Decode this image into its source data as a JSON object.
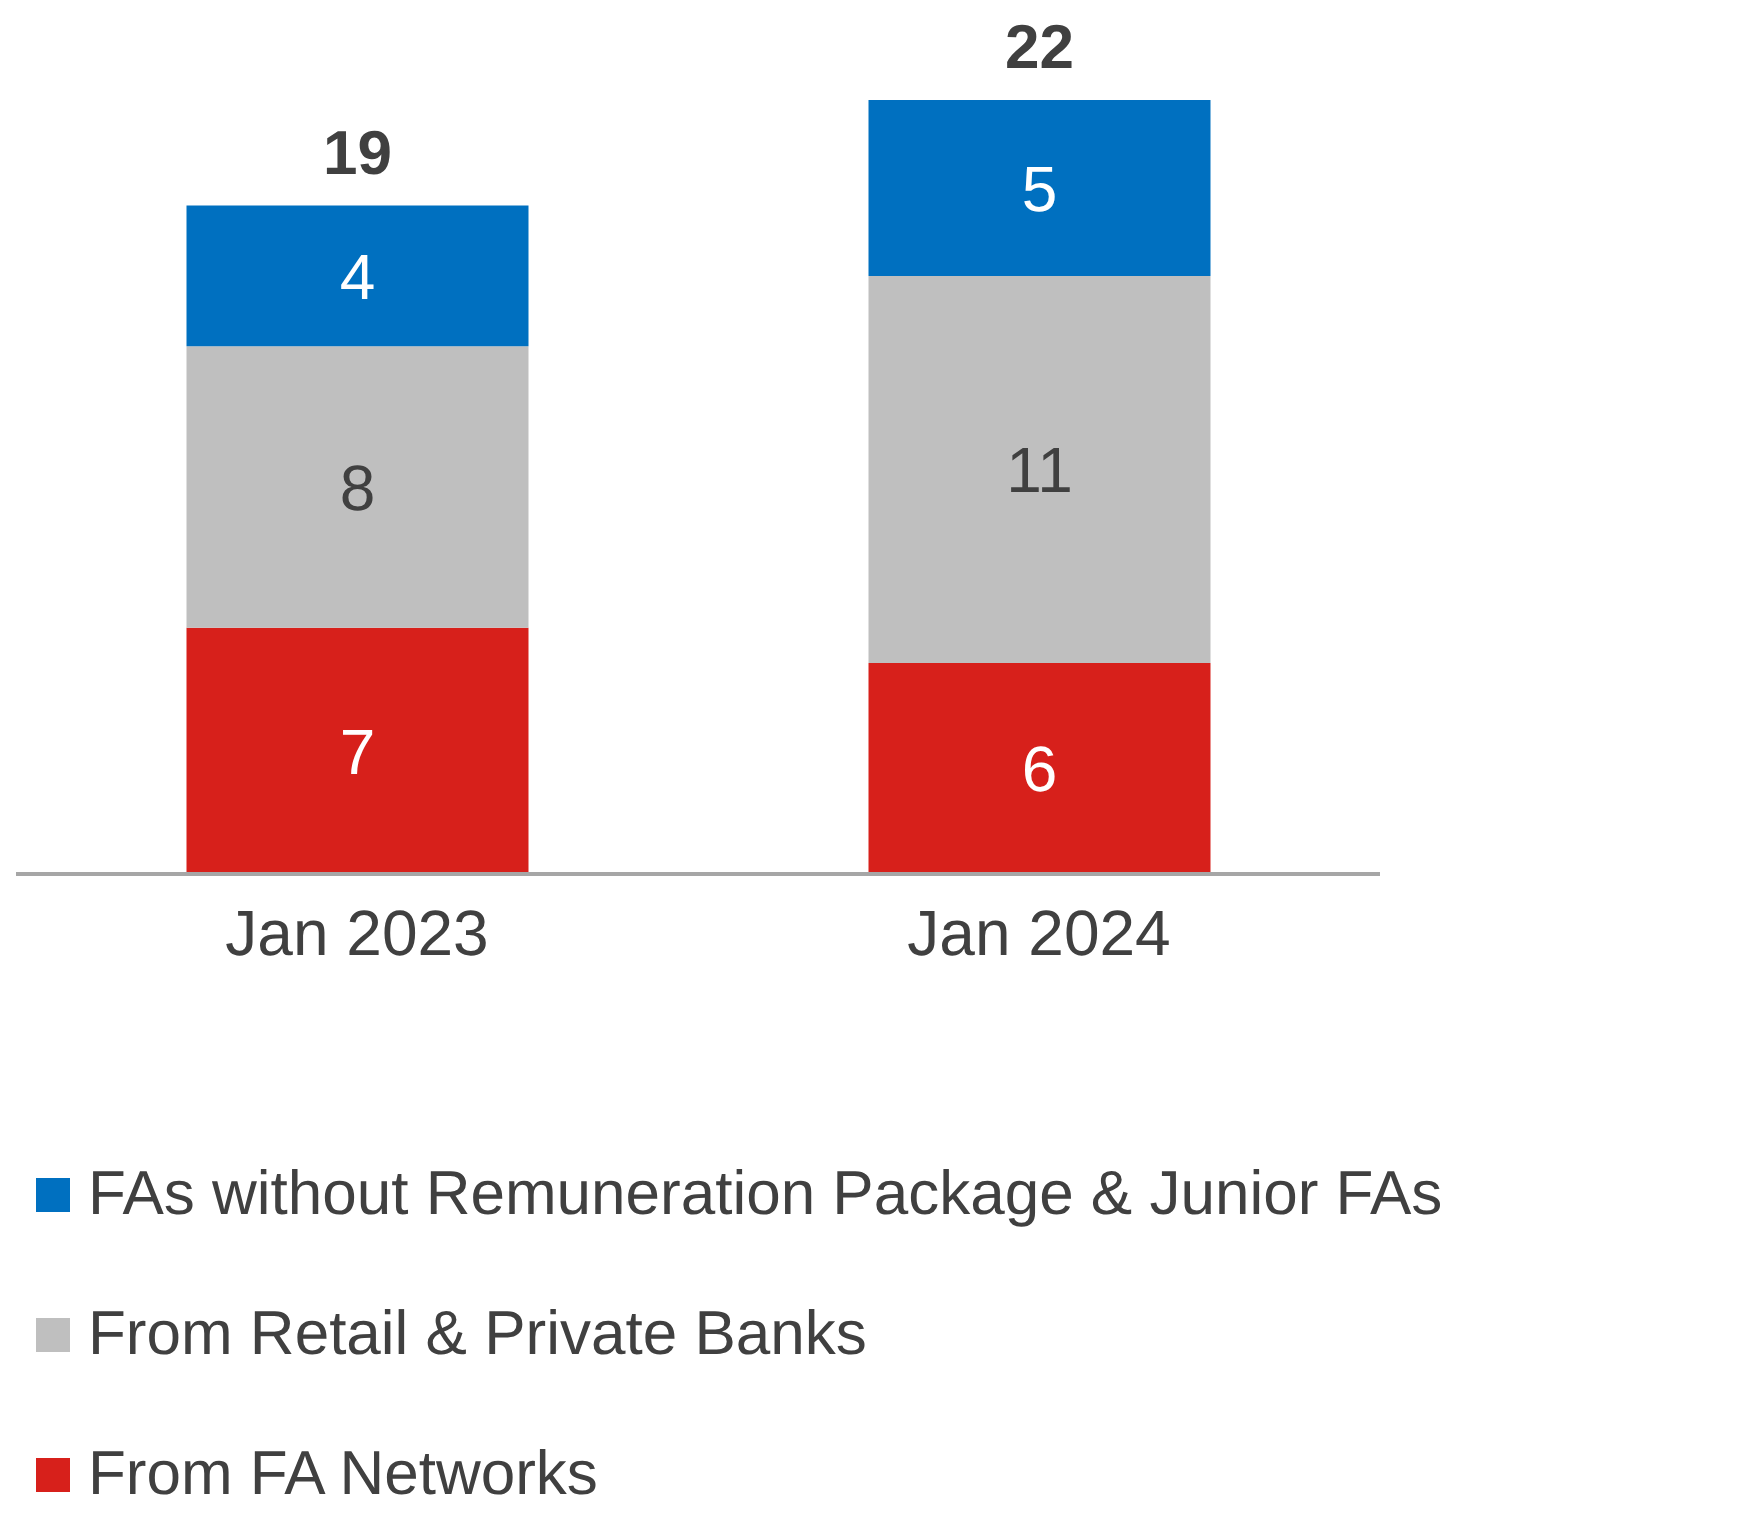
{
  "chart_data": {
    "type": "bar",
    "stacked": true,
    "categories": [
      "Jan 2023",
      "Jan 2024"
    ],
    "series": [
      {
        "name": "From FA Networks",
        "color": "#d7201b",
        "values": [
          7,
          6
        ]
      },
      {
        "name": "From Retail & Private Banks",
        "color": "#bfbfbf",
        "values": [
          8,
          11
        ]
      },
      {
        "name": "FAs without Remuneration Package & Junior FAs",
        "color": "#0070c0",
        "values": [
          4,
          5
        ]
      }
    ],
    "data_labels": true,
    "totals": [
      "19",
      "22"
    ],
    "tick_labels": "x",
    "legend": "bottom"
  }
}
